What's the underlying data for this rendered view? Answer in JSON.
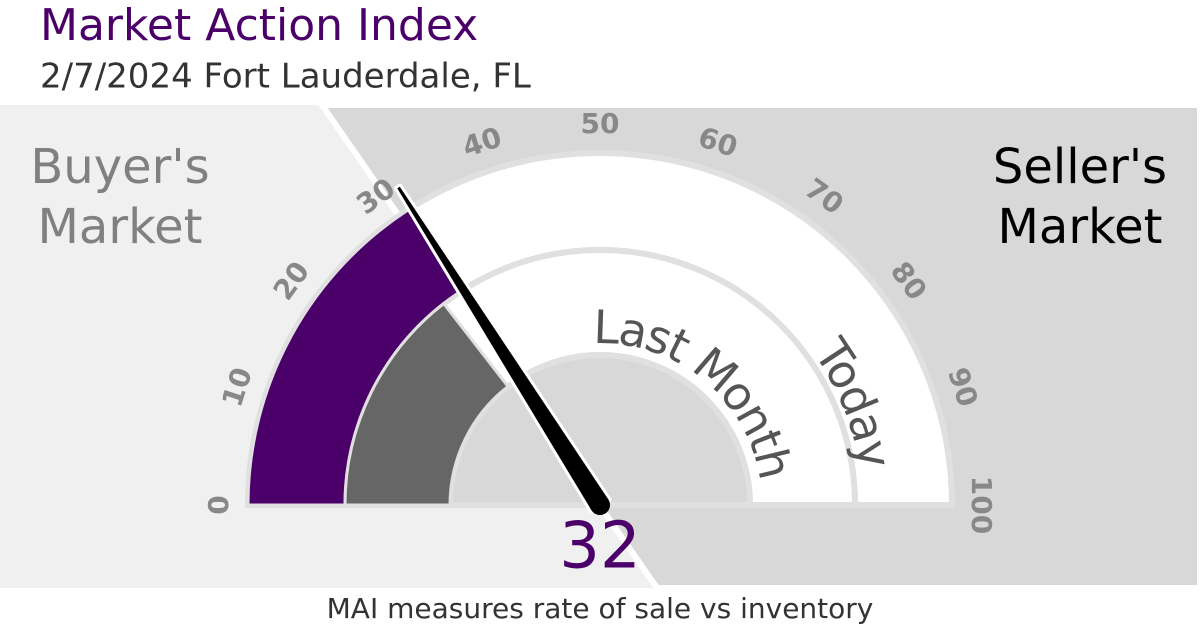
{
  "chart_data": {
    "type": "gauge",
    "title": "Market Action Index",
    "subtitle": "2/7/2024 Fort Lauderdale, FL",
    "ylim": [
      0,
      100
    ],
    "yticks": [
      0,
      10,
      20,
      30,
      40,
      50,
      60,
      70,
      80,
      90,
      100
    ],
    "series": [
      {
        "name": "Today",
        "color": "#4b0069",
        "values": [
          32
        ]
      },
      {
        "name": "Last Month",
        "color": "#666666",
        "values": [
          29
        ]
      }
    ],
    "left_label": [
      "Buyer's",
      "Market"
    ],
    "right_label": [
      "Seller's",
      "Market"
    ],
    "note": "MAI measures rate of sale vs inventory"
  }
}
